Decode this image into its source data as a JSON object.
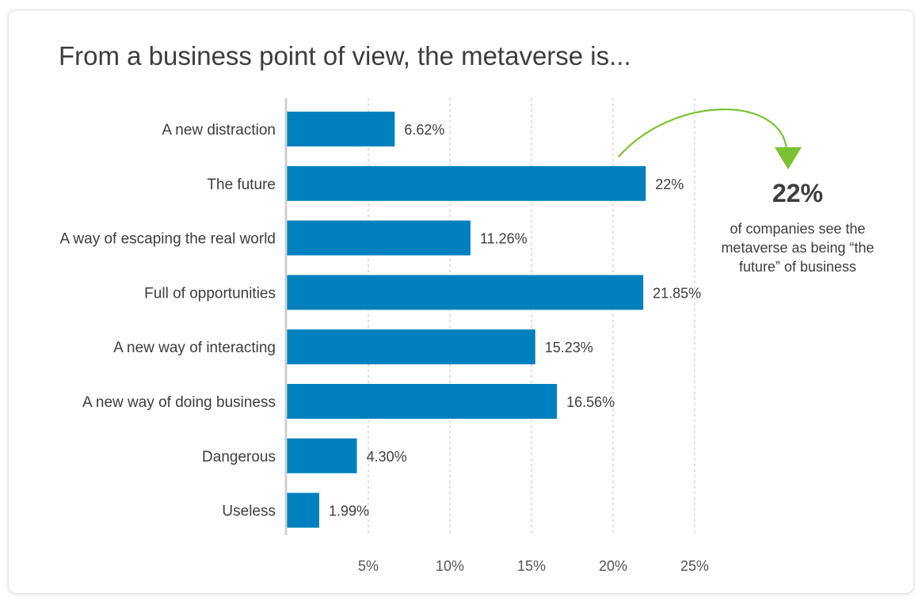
{
  "chart_data": {
    "type": "bar",
    "orientation": "horizontal",
    "title": "From a business point of view, the metaverse is...",
    "categories": [
      "A new distraction",
      "The future",
      "A way of escaping the real world",
      "Full of opportunities",
      "A new way of interacting",
      "A new way of doing business",
      "Dangerous",
      "Useless"
    ],
    "values": [
      6.62,
      22,
      11.26,
      21.85,
      15.23,
      16.56,
      4.3,
      1.99
    ],
    "value_labels": [
      "6.62%",
      "22%",
      "11.26%",
      "21.85%",
      "15.23%",
      "16.56%",
      "4.30%",
      "1.99%"
    ],
    "xticks": [
      5,
      10,
      15,
      20,
      25
    ],
    "xtick_labels": [
      "5%",
      "10%",
      "15%",
      "20%",
      "25%"
    ],
    "xlim": [
      0,
      27
    ],
    "bar_color": "#0080bf",
    "grid": "vertical dashed",
    "xlabel": "",
    "ylabel": ""
  },
  "callout": {
    "value": "22%",
    "text": "of companies see the metaverse as being “the future” of business",
    "arrow_color": "#7ac231"
  }
}
